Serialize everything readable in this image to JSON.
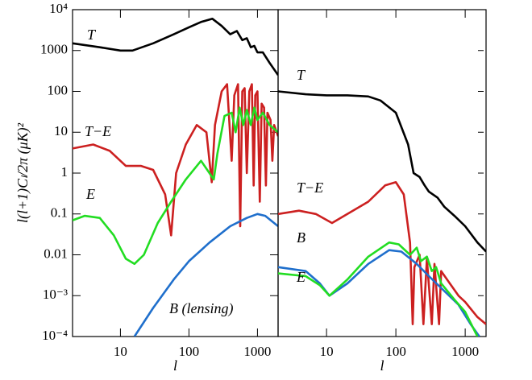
{
  "y_axis_label": "l(l+1)Cₗ/2π (μK)²",
  "chart_data": [
    {
      "type": "line",
      "x_label": "l",
      "log_x": true,
      "log_y": true,
      "xlim": [
        2,
        2000
      ],
      "ylim": [
        0.0001,
        10000
      ],
      "xticks": [
        10,
        100,
        1000
      ],
      "yticks": [
        {
          "value": 10000,
          "label": "10⁴"
        },
        1000,
        100,
        10,
        1,
        0.1,
        0.01,
        {
          "value": 0.001,
          "label": "10⁻³"
        },
        {
          "value": 0.0001,
          "label": "10⁻⁴"
        }
      ],
      "series": [
        {
          "name": "T",
          "color": "#000000",
          "x": [
            2,
            5,
            10,
            15,
            30,
            60,
            100,
            150,
            220,
            300,
            400,
            500,
            600,
            700,
            800,
            900,
            1000,
            1200,
            1500,
            2000
          ],
          "values": [
            1500,
            1200,
            1000,
            1000,
            1500,
            2500,
            3700,
            5000,
            6000,
            4000,
            2500,
            3000,
            1800,
            2000,
            1200,
            1300,
            900,
            900,
            500,
            250
          ]
        },
        {
          "name": "T−E",
          "color": "#cc2020",
          "x": [
            2,
            4,
            7,
            12,
            20,
            30,
            45,
            55,
            65,
            90,
            130,
            180,
            215,
            240,
            300,
            360,
            420,
            460,
            520,
            560,
            600,
            650,
            700,
            760,
            830,
            880,
            930,
            1000,
            1080,
            1150,
            1250,
            1330,
            1400,
            1550,
            1650,
            1750,
            2000
          ],
          "values": [
            4,
            5,
            3.5,
            1.5,
            1.5,
            1.2,
            0.3,
            0.03,
            1,
            5,
            15,
            10,
            0.6,
            15,
            100,
            150,
            2,
            80,
            150,
            0.05,
            100,
            120,
            1,
            100,
            150,
            0.5,
            80,
            100,
            0.2,
            50,
            40,
            0.5,
            30,
            20,
            2,
            15,
            8
          ]
        },
        {
          "name": "E",
          "color": "#22dd22",
          "x": [
            2,
            3,
            5,
            8,
            12,
            16,
            22,
            35,
            55,
            90,
            150,
            230,
            260,
            330,
            420,
            480,
            550,
            620,
            700,
            800,
            900,
            1000,
            1200,
            1500,
            2000
          ],
          "values": [
            0.07,
            0.09,
            0.08,
            0.03,
            0.008,
            0.006,
            0.01,
            0.06,
            0.2,
            0.7,
            2,
            0.7,
            3,
            25,
            30,
            10,
            40,
            15,
            35,
            15,
            40,
            20,
            30,
            15,
            10
          ]
        },
        {
          "name": "B (lensing)",
          "color": "#1f6fcc",
          "x": [
            16,
            30,
            60,
            100,
            200,
            400,
            700,
            1000,
            1300,
            2000
          ],
          "values": [
            0.0001,
            0.0005,
            0.0025,
            0.007,
            0.02,
            0.05,
            0.08,
            0.1,
            0.09,
            0.05
          ]
        }
      ]
    },
    {
      "type": "line",
      "x_label": "l",
      "log_x": true,
      "log_y": true,
      "xlim": [
        2,
        2000
      ],
      "ylim": [
        0.0001,
        10000
      ],
      "xticks": [
        10,
        100,
        1000
      ],
      "series": [
        {
          "name": "T",
          "color": "#000000",
          "x": [
            2,
            5,
            10,
            20,
            40,
            60,
            100,
            150,
            180,
            220,
            260,
            300,
            400,
            500,
            700,
            1000,
            1500,
            2000
          ],
          "values": [
            100,
            85,
            80,
            80,
            75,
            60,
            30,
            5,
            1,
            0.8,
            0.5,
            0.35,
            0.25,
            0.15,
            0.09,
            0.05,
            0.02,
            0.012
          ]
        },
        {
          "name": "T−E",
          "color": "#cc2020",
          "x": [
            2,
            4,
            7,
            12,
            20,
            40,
            70,
            100,
            130,
            160,
            175,
            185,
            220,
            250,
            280,
            330,
            360,
            420,
            450,
            600,
            800,
            1000,
            1500,
            2000
          ],
          "values": [
            0.1,
            0.12,
            0.1,
            0.06,
            0.1,
            0.2,
            0.5,
            0.6,
            0.3,
            0.02,
            0.0002,
            0.005,
            0.01,
            0.0002,
            0.008,
            0.0002,
            0.006,
            0.0002,
            0.004,
            0.002,
            0.001,
            0.0007,
            0.0003,
            0.0002
          ]
        },
        {
          "name": "B",
          "color": "#1f6fcc",
          "x": [
            2,
            5,
            8,
            11,
            20,
            40,
            80,
            120,
            200,
            300,
            500,
            800,
            1200,
            1600
          ],
          "values": [
            0.005,
            0.004,
            0.002,
            0.001,
            0.002,
            0.006,
            0.013,
            0.012,
            0.006,
            0.003,
            0.0013,
            0.0006,
            0.0002,
            0.0001
          ]
        },
        {
          "name": "E",
          "color": "#22dd22",
          "x": [
            2,
            5,
            8,
            11,
            20,
            40,
            80,
            110,
            160,
            200,
            230,
            280,
            330,
            380,
            450,
            700,
            1000,
            1500
          ],
          "values": [
            0.0035,
            0.003,
            0.0018,
            0.001,
            0.0025,
            0.009,
            0.02,
            0.018,
            0.01,
            0.015,
            0.007,
            0.009,
            0.004,
            0.005,
            0.002,
            0.0008,
            0.0004,
            0.0001
          ]
        }
      ]
    }
  ]
}
